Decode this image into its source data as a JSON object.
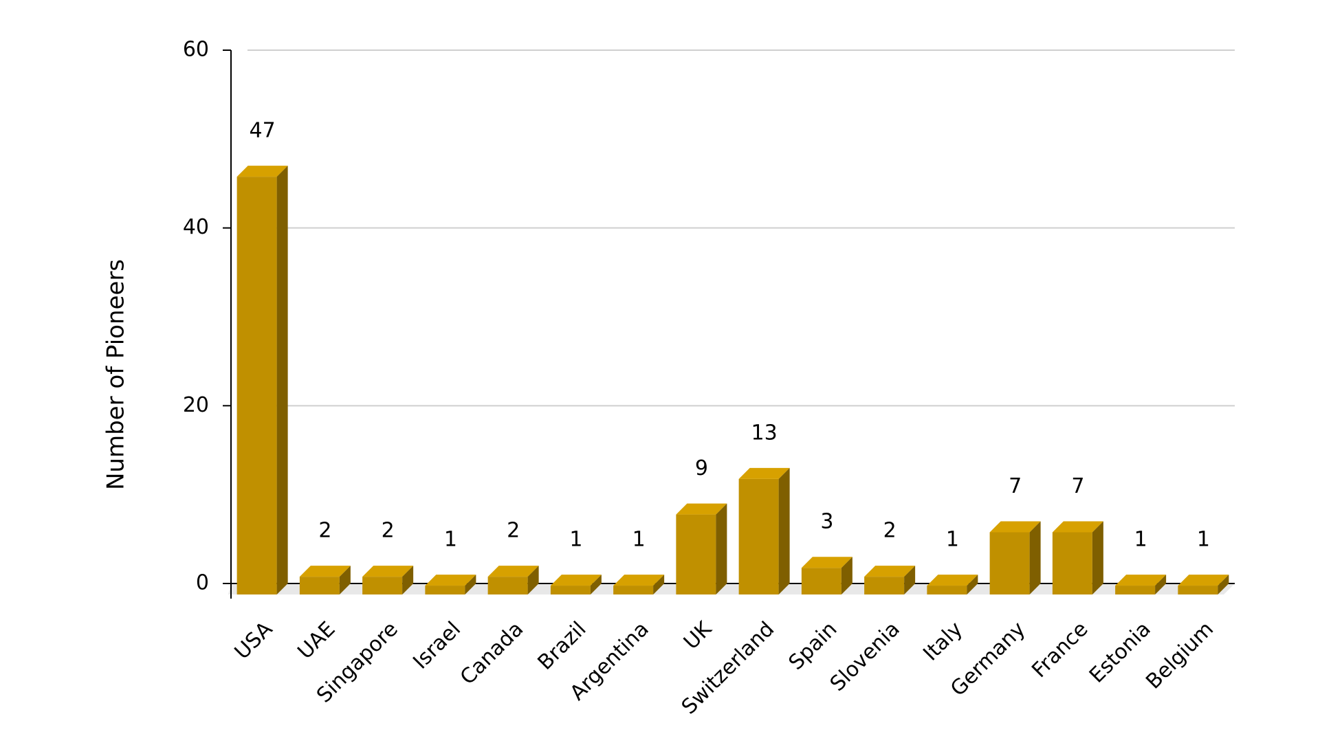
{
  "chart_data": {
    "type": "bar3d",
    "y_label": "Number of Pioneers",
    "categories": [
      "USA",
      "UAE",
      "Singapore",
      "Israel",
      "Canada",
      "Brazil",
      "Argentina",
      "UK",
      "Switzerland",
      "Spain",
      "Slovenia",
      "Italy",
      "Germany",
      "France",
      "Estonia",
      "Belgium"
    ],
    "values": [
      47,
      2,
      2,
      1,
      2,
      1,
      1,
      9,
      13,
      3,
      2,
      1,
      7,
      7,
      1,
      1
    ],
    "color": "#c09000",
    "ylim": [
      0,
      60
    ],
    "yticks": [
      0,
      20,
      40,
      60
    ],
    "grid": true,
    "value_labels_shown": true
  }
}
